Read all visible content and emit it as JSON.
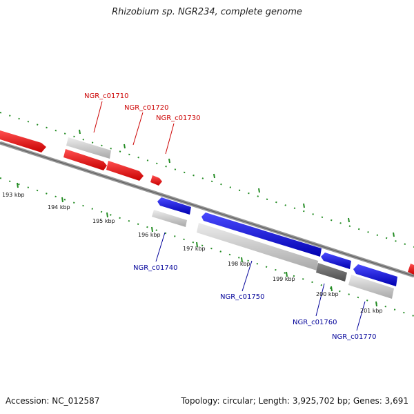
{
  "title": "Rhizobium sp. NGR234, complete genome",
  "footer": {
    "accession": "Accession: NC_012587",
    "summary": "Topology: circular; Length: 3,925,702 bp; Genes: 3,691"
  },
  "colors": {
    "forward_gene": "#ff0000",
    "reverse_gene": "#0000ee",
    "cds_gray": "#c8c8c8",
    "cds_dark_gray": "#707070",
    "backbone": "#808080",
    "tick_green": "#228b22",
    "forward_label": "#cc0000",
    "reverse_label": "#000099"
  },
  "scale_ticks": [
    "193 kbp",
    "194 kbp",
    "195 kbp",
    "196 kbp",
    "197 kbp",
    "198 kbp",
    "199 kbp",
    "200 kbp",
    "201 kbp"
  ],
  "forward_labels": [
    "NGR_c01710",
    "NGR_c01720",
    "NGR_c01730"
  ],
  "reverse_labels": [
    "NGR_c01740",
    "NGR_c01750",
    "NGR_c01760",
    "NGR_c01770"
  ]
}
